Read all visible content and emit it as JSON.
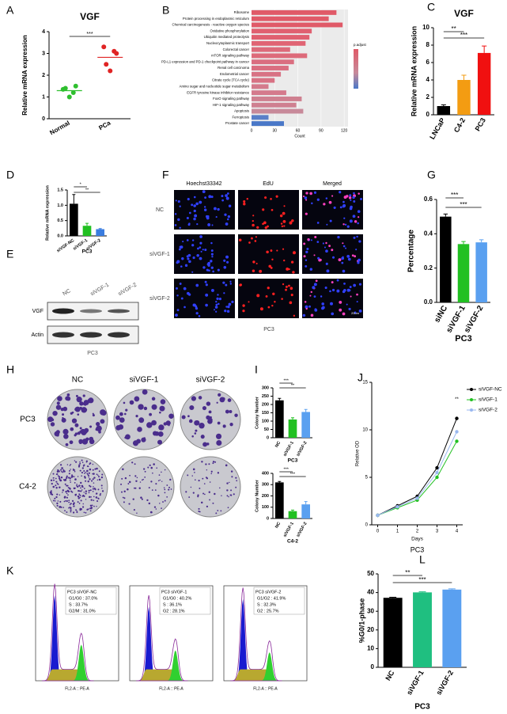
{
  "panel_letters": [
    "A",
    "B",
    "C",
    "D",
    "E",
    "F",
    "G",
    "H",
    "I",
    "J",
    "K",
    "L"
  ],
  "chart_data": [
    {
      "type": "strip",
      "title": "VGF",
      "ylabel": "Relative mRNA expression",
      "categories": [
        "Normal",
        "PCa"
      ],
      "values": [
        [
          1.35,
          1.5,
          1.0,
          1.4,
          1.2
        ],
        [
          3.3,
          3.0,
          2.2,
          2.5,
          3.1
        ]
      ],
      "colors": [
        "#2fbf2f",
        "#e02424"
      ],
      "ylim": [
        0,
        4
      ],
      "yticks": [
        0,
        1,
        2,
        3,
        4
      ],
      "annotations": [
        "***"
      ]
    },
    {
      "type": "hbar",
      "xlabel": "Count",
      "legend_title": "p.adjust",
      "categories": [
        "Ribosome",
        "Protein processing in endoplasmic reticulum",
        "Chemical carcinogenesis - reactive oxygen species",
        "Oxidative phosphorylation",
        "Ubiquitin mediated proteolysis",
        "Nucleocytoplasmic transport",
        "Colorectal cancer",
        "mTOR signaling pathway",
        "PD-L1 expression and PD-1 checkpoint pathway in cancer",
        "Renal cell carcinoma",
        "Endometrial cancer",
        "Citrate cycle (TCA cycle)",
        "Amino sugar and nucleotide sugar metabolism",
        "EGFR tyrosine kinase inhibitor resistance",
        "FoxO signaling pathway",
        "HIF-1 signaling pathway",
        "Apoptosis",
        "Ferroptosis",
        "Prostate cancer"
      ],
      "values": [
        110,
        100,
        118,
        78,
        75,
        70,
        50,
        72,
        55,
        48,
        38,
        30,
        22,
        45,
        65,
        58,
        67,
        22,
        42
      ],
      "colors": [
        "#e05a68",
        "#e05a68",
        "#e05a68",
        "#e06070",
        "#e06070",
        "#e06474",
        "#dd6a7a",
        "#dd6a7a",
        "#da6e80",
        "#da6e80",
        "#d87284",
        "#d87284",
        "#d47a8c",
        "#d47a8c",
        "#cf8090",
        "#cf8090",
        "#c88a9a",
        "#5a7fc8",
        "#4a78c8"
      ],
      "xlim": [
        0,
        125
      ],
      "xticks": [
        0,
        30,
        60,
        90,
        120
      ]
    },
    {
      "type": "bar",
      "title": "VGF",
      "ylabel": "Relative mRNA expression",
      "categories": [
        "LNCaP",
        "C4-2",
        "PC3"
      ],
      "values": [
        1.0,
        4.0,
        7.1
      ],
      "errors": [
        0.15,
        0.55,
        0.8
      ],
      "colors": [
        "#000000",
        "#f39c12",
        "#f01010"
      ],
      "ylim": [
        0,
        10
      ],
      "yticks": [
        0,
        2,
        4,
        6,
        8,
        10
      ],
      "annotations": [
        "**",
        "***"
      ]
    },
    {
      "type": "bar",
      "ylabel": "Relative mRNA expression",
      "xlabel": "PC3",
      "categories": [
        "siVGF-NC",
        "siVGF-1",
        "siVGF-2"
      ],
      "values": [
        1.05,
        0.33,
        0.22
      ],
      "errors": [
        0.3,
        0.08,
        0.02
      ],
      "colors": [
        "#000000",
        "#22c022",
        "#3a7de0"
      ],
      "ylim": [
        0,
        1.5
      ],
      "yticks": [
        {
          "value": 0,
          "label": "0.0"
        },
        {
          "value": 0.5,
          "label": "0.5"
        },
        {
          "value": 1,
          "label": "1.0"
        },
        {
          "value": 1.5,
          "label": "1.5"
        }
      ],
      "annotations": [
        "*",
        "**"
      ]
    },
    {
      "type": "bar",
      "ylabel": "Percentage",
      "xlabel": "PC3",
      "categories": [
        "siNC",
        "siVGF-1",
        "siVGF-2"
      ],
      "values": [
        0.5,
        0.34,
        0.35
      ],
      "errors": [
        0.015,
        0.015,
        0.015
      ],
      "colors": [
        "#000000",
        "#22c022",
        "#5aa0f0"
      ],
      "ylim": [
        0,
        0.6
      ],
      "yticks": [
        {
          "value": 0,
          "label": "0.0"
        },
        0.2,
        0.4,
        0.6
      ],
      "annotations": [
        "***",
        "***"
      ]
    },
    {
      "type": "bar",
      "ylabel": "Colony Number",
      "xlabel": "PC3",
      "categories": [
        "NC",
        "siVGF-1",
        "siVGF-2"
      ],
      "values": [
        225,
        110,
        155
      ],
      "errors": [
        12,
        10,
        15
      ],
      "colors": [
        "#000000",
        "#22c022",
        "#5aa0f0"
      ],
      "ylim": [
        0,
        300
      ],
      "yticks": [
        0,
        50,
        100,
        150,
        200,
        250,
        300
      ],
      "annotations": [
        "***",
        "**"
      ]
    },
    {
      "type": "bar",
      "ylabel": "Colony Number",
      "xlabel": "C4-2",
      "categories": [
        "NC",
        "siVGF-1",
        "siVGF-2"
      ],
      "values": [
        320,
        65,
        125
      ],
      "errors": [
        8,
        10,
        25
      ],
      "colors": [
        "#000000",
        "#22c022",
        "#5aa0f0"
      ],
      "ylim": [
        0,
        400
      ],
      "yticks": [
        0,
        100,
        200,
        300,
        400
      ],
      "annotations": [
        "***",
        "***"
      ]
    },
    {
      "type": "line",
      "ylabel": "Relative OD",
      "xlabel": "Days",
      "caption": "PC3",
      "x": [
        0,
        1,
        2,
        3,
        4
      ],
      "xlim": [
        -0.3,
        4.3
      ],
      "xticks": [
        0,
        1,
        2,
        3,
        4
      ],
      "ylim": [
        0,
        15
      ],
      "yticks": [
        0,
        5,
        10,
        15
      ],
      "series": [
        {
          "name": "siVGF-NC",
          "color": "#000000",
          "values": [
            1,
            2,
            3,
            6,
            11.2
          ]
        },
        {
          "name": "siVGF-1",
          "color": "#22c022",
          "values": [
            1,
            1.8,
            2.6,
            5,
            8.8
          ]
        },
        {
          "name": "siVGF-2",
          "color": "#9ab8f0",
          "values": [
            1,
            1.9,
            2.8,
            5.5,
            9.8
          ]
        }
      ],
      "annotations": [
        "**"
      ]
    },
    {
      "type": "bar",
      "ylabel": "%G0/1-phase",
      "xlabel": "PC3",
      "categories": [
        "NC",
        "siVGF-1",
        "siVGF-2"
      ],
      "values": [
        37.2,
        40.1,
        41.6
      ],
      "errors": [
        0.3,
        0.3,
        0.4
      ],
      "colors": [
        "#000000",
        "#1fbf80",
        "#5aa0f0"
      ],
      "ylim": [
        0,
        50
      ],
      "yticks": [
        0,
        10,
        20,
        30,
        40,
        50
      ],
      "annotations": [
        "**",
        "***"
      ]
    }
  ],
  "blot": {
    "lanes": [
      "NC",
      "siVGF-1",
      "siVGF-2"
    ],
    "bands": [
      "VGF",
      "Actin"
    ],
    "cell_line": "PC3"
  },
  "edu": {
    "columns": [
      "Hoechst33342",
      "EdU",
      "Merged"
    ],
    "rows": [
      "NC",
      "siVGF-1",
      "siVGF-2"
    ],
    "cell_line": "PC3",
    "scale": "20um"
  },
  "colony": {
    "columns": [
      "NC",
      "siVGF-1",
      "siVGF-2"
    ],
    "rows": [
      "PC3",
      "C4-2"
    ]
  },
  "flow": {
    "xlabel": "FL2-A :: PE-A",
    "panels": [
      {
        "title": "PC3 siVGF-NC",
        "lines": [
          "G1/G0 : 37.0%",
          "S : 33.7%",
          "G2/M : 31.0%"
        ]
      },
      {
        "title": "PC3 siVGF-1",
        "lines": [
          "G1/G0 : 40.2%",
          "S : 36.1%",
          "G2 : 28.1%"
        ]
      },
      {
        "title": "PC3 siVGF-2",
        "lines": [
          "G1/G2 : 41.9%",
          "S : 32.3%",
          "G2 : 25.7%"
        ]
      }
    ]
  }
}
